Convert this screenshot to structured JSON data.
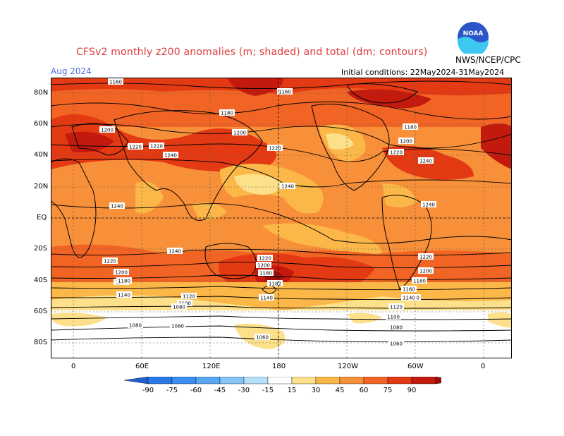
{
  "header": {
    "title": "CFSv2 monthly z200 anomalies (m; shaded) and total (dm; contours)",
    "valid_month": "Aug 2024",
    "initial_conditions": "Initial conditions: 22May2024-31May2024",
    "source": "NWS/NCEP/CPC",
    "logo_text": "NOAA"
  },
  "axes": {
    "lat_labels": [
      "80N",
      "60N",
      "40N",
      "20N",
      "EQ",
      "20S",
      "40S",
      "60S",
      "80S"
    ],
    "lon_labels": [
      "0",
      "60E",
      "120E",
      "180",
      "120W",
      "60W",
      "0"
    ]
  },
  "contour_labels": [
    {
      "text": "1160"
    },
    {
      "text": "1160"
    },
    {
      "text": "1180"
    },
    {
      "text": "1200"
    },
    {
      "text": "1200"
    },
    {
      "text": "1220"
    },
    {
      "text": "1240"
    },
    {
      "text": "1220"
    },
    {
      "text": "1180"
    },
    {
      "text": "1200"
    },
    {
      "text": "1220"
    },
    {
      "text": "1240"
    },
    {
      "text": "1240"
    },
    {
      "text": "1240"
    },
    {
      "text": "1240"
    },
    {
      "text": "1240"
    },
    {
      "text": "1220"
    },
    {
      "text": "1220"
    },
    {
      "text": "1200"
    },
    {
      "text": "1180"
    },
    {
      "text": "1182"
    },
    {
      "text": "1220"
    },
    {
      "text": "1200"
    },
    {
      "text": "1180"
    },
    {
      "text": "1160"
    },
    {
      "text": "1140"
    },
    {
      "text": "1140"
    },
    {
      "text": "1120"
    },
    {
      "text": "1100"
    },
    {
      "text": "1080"
    },
    {
      "text": "1080"
    },
    {
      "text": "1080"
    },
    {
      "text": "1060"
    },
    {
      "text": "1200"
    },
    {
      "text": "1180"
    },
    {
      "text": "1160"
    },
    {
      "text": "1140"
    },
    {
      "text": "1120"
    },
    {
      "text": "1100"
    },
    {
      "text": "1080"
    },
    {
      "text": "1060"
    },
    {
      "text": "1140"
    },
    {
      "text": "1220"
    }
  ],
  "colorbar": {
    "labels": [
      "-90",
      "-75",
      "-60",
      "-45",
      "-30",
      "-15",
      "15",
      "30",
      "45",
      "60",
      "75",
      "90"
    ],
    "colors": [
      "#1f5fd0",
      "#2a78e6",
      "#3c8ef2",
      "#5aa8f5",
      "#84c4f7",
      "#b4e0fa",
      "#ffffff",
      "#fde08a",
      "#fbb848",
      "#f8903a",
      "#f26424",
      "#e33a14",
      "#c41a0e",
      "#9e0c0c"
    ]
  }
}
